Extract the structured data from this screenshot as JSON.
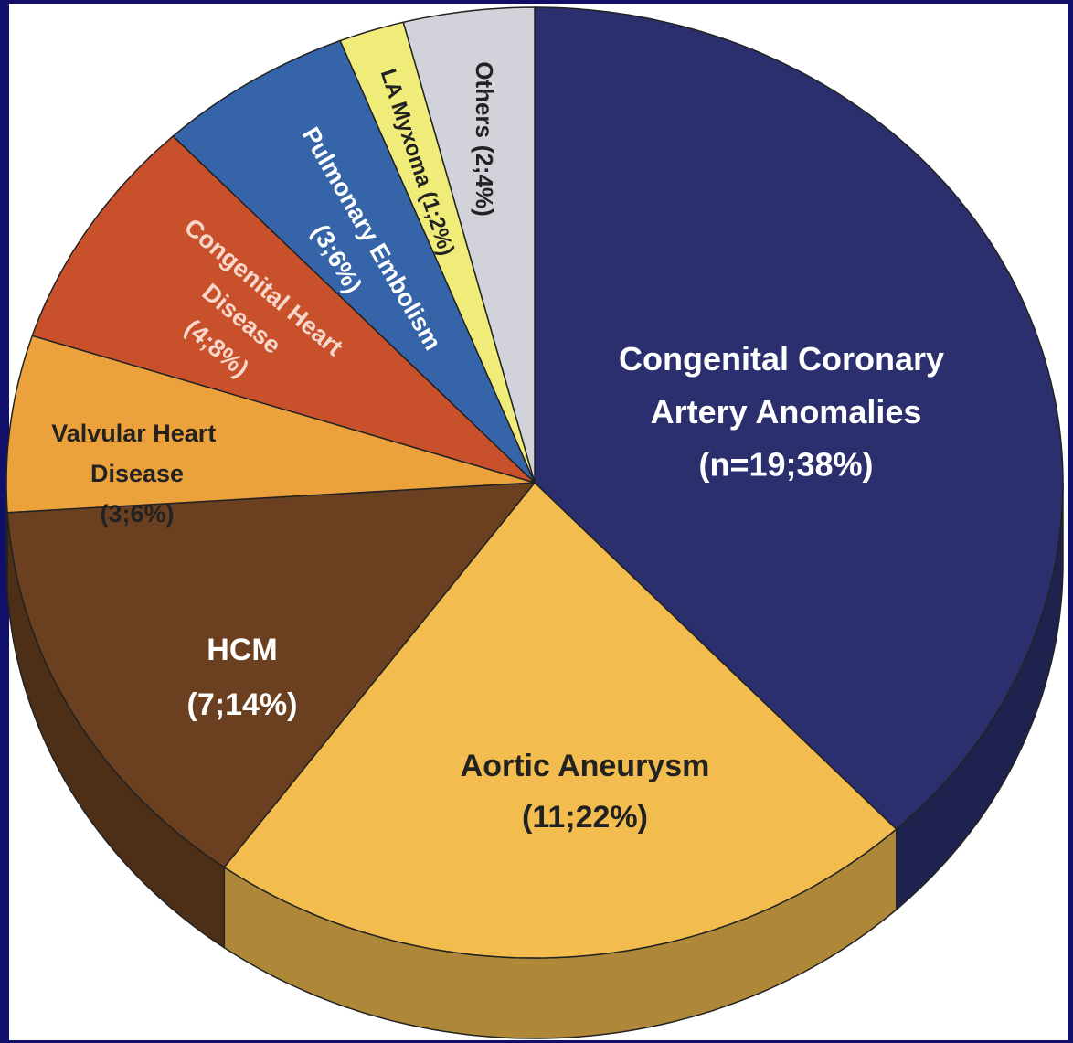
{
  "chart_data": {
    "type": "pie",
    "categories": [
      "Congenital Coronary Artery Anomalies",
      "Aortic Aneurysm",
      "HCM",
      "Valvular Heart Disease",
      "Congenital Heart Disease",
      "Pulmonary Embolism",
      "LA Myxoma",
      "Others"
    ],
    "values": [
      38,
      22,
      14,
      6,
      8,
      6,
      2,
      4
    ],
    "value_labels": [
      "(n=19;38%)",
      "(11;22%)",
      "(7;14%)",
      "(3;6%)",
      "(4;8%)",
      "(3;6%)",
      "(1;2%)",
      "(2;4%)"
    ],
    "colors": [
      "#2b2f6e",
      "#f2bd4e",
      "#6b4020",
      "#eca23c",
      "#c8512b",
      "#3565a8",
      "#f0ec7a",
      "#d2d2da"
    ],
    "start_angle": 0,
    "direction": "clockwise"
  }
}
